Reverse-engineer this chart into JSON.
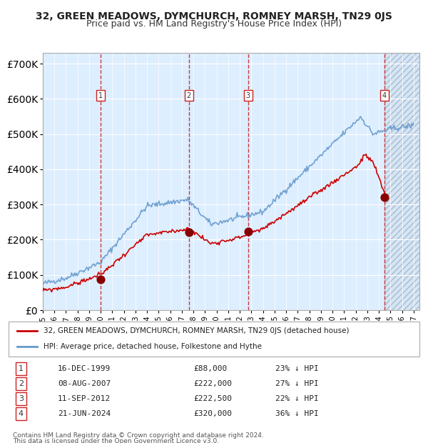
{
  "title": "32, GREEN MEADOWS, DYMCHURCH, ROMNEY MARSH, TN29 0JS",
  "subtitle": "Price paid vs. HM Land Registry's House Price Index (HPI)",
  "legend_line1": "32, GREEN MEADOWS, DYMCHURCH, ROMNEY MARSH, TN29 0JS (detached house)",
  "legend_line2": "HPI: Average price, detached house, Folkestone and Hythe",
  "footer1": "Contains HM Land Registry data © Crown copyright and database right 2024.",
  "footer2": "This data is licensed under the Open Government Licence v3.0.",
  "transactions": [
    {
      "num": 1,
      "date": "16-DEC-1999",
      "price": 88000,
      "pct": "23%",
      "dir": "↓",
      "x_year": 1999.96
    },
    {
      "num": 2,
      "date": "08-AUG-2007",
      "price": 222000,
      "pct": "27%",
      "dir": "↓",
      "x_year": 2007.6
    },
    {
      "num": 3,
      "date": "11-SEP-2012",
      "price": 222500,
      "pct": "22%",
      "dir": "↓",
      "x_year": 2012.7
    },
    {
      "num": 4,
      "date": "21-JUN-2024",
      "price": 320000,
      "pct": "36%",
      "dir": "↓",
      "x_year": 2024.47
    }
  ],
  "red_line_color": "#cc0000",
  "blue_line_color": "#6699cc",
  "background_color": "#ddeeff",
  "hatch_color": "#bbccdd",
  "grid_color": "#ffffff",
  "vline_colors": [
    "#cc0000",
    "#cc0000",
    "#cc0000",
    "#cc0000"
  ],
  "ylim": [
    0,
    730000
  ],
  "xlim_start": 1995.0,
  "xlim_end": 2027.5,
  "future_start": 2024.47
}
